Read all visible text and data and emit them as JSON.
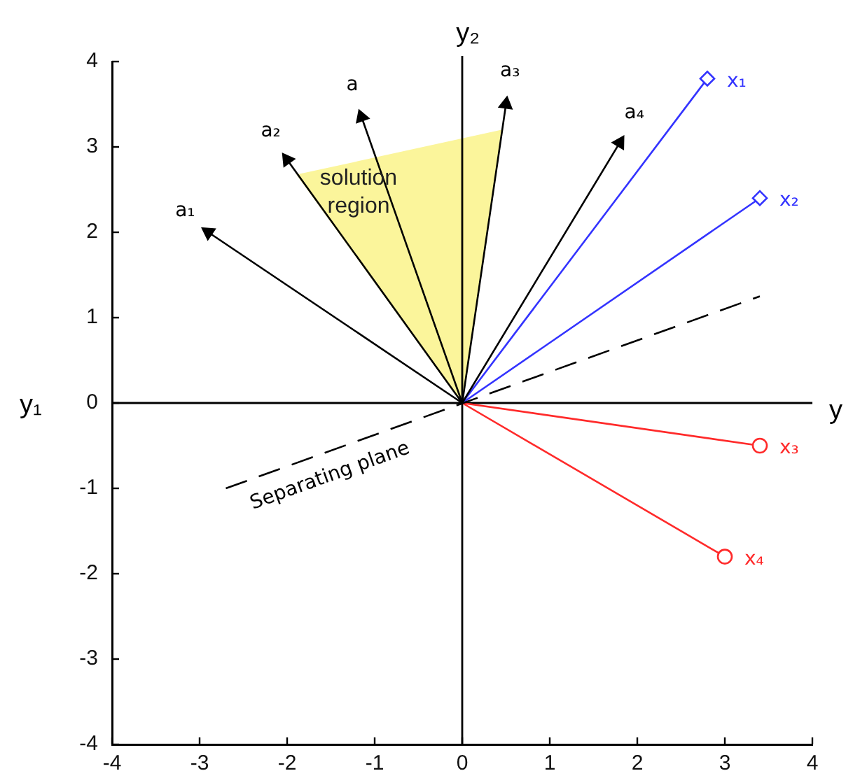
{
  "chart_data": {
    "type": "line",
    "ylabel": "y₁",
    "xlim": [
      -4,
      4
    ],
    "ylim": [
      -4,
      4
    ],
    "xticks": [
      -4,
      -3,
      -2,
      -1,
      0,
      1,
      2,
      3,
      4
    ],
    "yticks": [
      -4,
      -3,
      -2,
      -1,
      0,
      1,
      2,
      3,
      4
    ],
    "ref_lines": [
      {
        "axis": "x",
        "value": 0,
        "label": "y₂",
        "color": "#000000"
      },
      {
        "axis": "y",
        "value": 0,
        "label": "y",
        "color": "#000000"
      }
    ],
    "series": [
      {
        "name": "solution region",
        "type": "area",
        "color": "#fbf59b",
        "x": [
          0,
          -1.88,
          0.44,
          0
        ],
        "values": [
          0,
          2.67,
          3.19,
          0
        ]
      },
      {
        "name": "Separating plane",
        "type": "line",
        "color": "#000000",
        "line_style": "dashed",
        "x": [
          -2.7,
          3.4
        ],
        "values": [
          -1.0,
          1.25
        ]
      },
      {
        "name": "a₁",
        "type": "line",
        "color": "#000000",
        "marker": "triangle",
        "x": [
          0,
          -2.9
        ],
        "values": [
          0,
          2.0
        ]
      },
      {
        "name": "a₂",
        "type": "line",
        "color": "#000000",
        "marker": "triangle",
        "x": [
          0,
          -2.0
        ],
        "values": [
          0,
          2.85
        ]
      },
      {
        "name": "a",
        "type": "line",
        "color": "#000000",
        "marker": "triangle",
        "x": [
          0,
          -1.15
        ],
        "values": [
          0,
          3.35
        ]
      },
      {
        "name": "a₃",
        "type": "line",
        "color": "#000000",
        "marker": "triangle",
        "x": [
          0,
          0.5
        ],
        "values": [
          0,
          3.5
        ]
      },
      {
        "name": "a₄",
        "type": "line",
        "color": "#000000",
        "marker": "triangle",
        "x": [
          0,
          1.8
        ],
        "values": [
          0,
          3.05
        ]
      },
      {
        "name": "x₁",
        "type": "line",
        "color": "#3333ff",
        "marker": "diamond",
        "x": [
          0,
          2.8
        ],
        "values": [
          0,
          3.8
        ]
      },
      {
        "name": "x₂",
        "type": "line",
        "color": "#3333ff",
        "marker": "diamond",
        "x": [
          0,
          3.4
        ],
        "values": [
          0,
          2.4
        ]
      },
      {
        "name": "x₃",
        "type": "line",
        "color": "#ff2a2a",
        "marker": "circle",
        "x": [
          0,
          3.4
        ],
        "values": [
          0,
          -0.5
        ]
      },
      {
        "name": "x₄",
        "type": "line",
        "color": "#ff2a2a",
        "marker": "circle",
        "x": [
          0,
          3.0
        ],
        "values": [
          0,
          -1.8
        ]
      }
    ]
  }
}
